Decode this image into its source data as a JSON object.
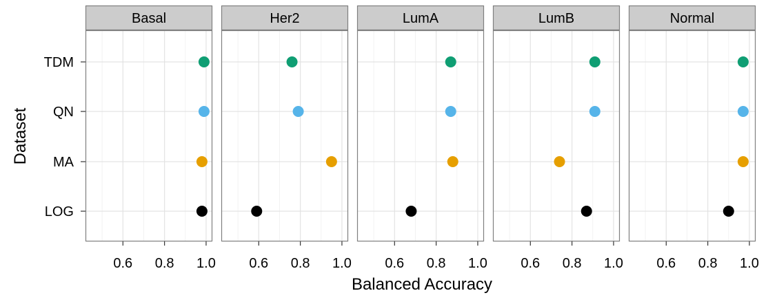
{
  "chart_data": {
    "type": "scatter",
    "facet_label": "",
    "xlabel": "Balanced Accuracy",
    "ylabel": "Dataset",
    "xlim": [
      0.42,
      1.03
    ],
    "x_ticks": [
      0.6,
      0.8,
      1.0
    ],
    "x_tick_labels": [
      "0.6",
      "0.8",
      "1.0"
    ],
    "categories": [
      "TDM",
      "QN",
      "MA",
      "LOG"
    ],
    "grid": true,
    "legend": "none",
    "colors": {
      "TDM": "#0f9e73",
      "QN": "#56b4e9",
      "MA": "#e69f00",
      "LOG": "#000000"
    },
    "panels": [
      {
        "name": "Basal",
        "values": {
          "TDM": 0.99,
          "QN": 0.99,
          "MA": 0.98,
          "LOG": 0.98
        }
      },
      {
        "name": "Her2",
        "values": {
          "TDM": 0.76,
          "QN": 0.79,
          "MA": 0.95,
          "LOG": 0.59
        }
      },
      {
        "name": "LumA",
        "values": {
          "TDM": 0.87,
          "QN": 0.87,
          "MA": 0.88,
          "LOG": 0.68
        }
      },
      {
        "name": "LumB",
        "values": {
          "TDM": 0.91,
          "QN": 0.91,
          "MA": 0.74,
          "LOG": 0.87
        }
      },
      {
        "name": "Normal",
        "values": {
          "TDM": 0.97,
          "QN": 0.97,
          "MA": 0.97,
          "LOG": 0.9
        }
      }
    ]
  }
}
